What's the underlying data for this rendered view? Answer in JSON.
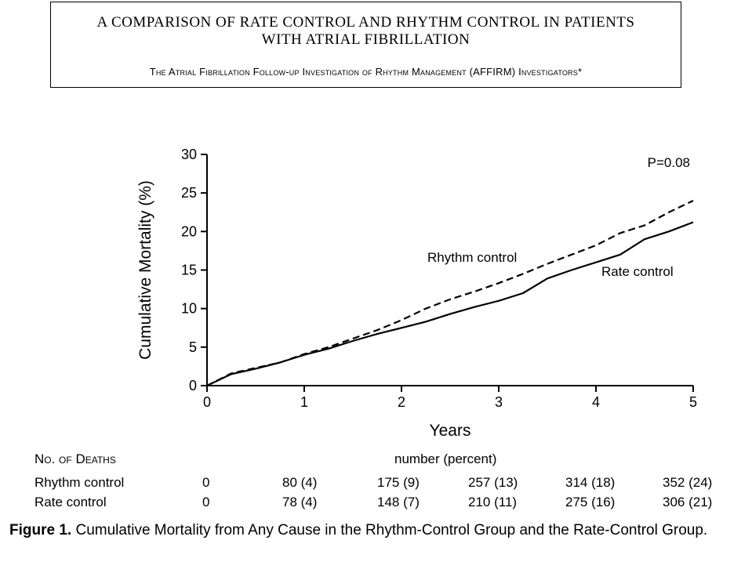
{
  "header": {
    "title": "A COMPARISON OF RATE CONTROL AND RHYTHM CONTROL IN PATIENTS\nWITH ATRIAL FIBRILLATION",
    "authors": "The Atrial Fibrillation Follow-up Investigation of Rhythm Management (AFFIRM) Investigators*"
  },
  "chart_data": {
    "type": "line",
    "xlabel": "Years",
    "ylabel": "Cumulative Mortality (%)",
    "xlim": [
      0,
      5
    ],
    "ylim": [
      0,
      30
    ],
    "xticks": [
      "0",
      "1",
      "2",
      "3",
      "4",
      "5"
    ],
    "yticks": [
      "0",
      "5",
      "10",
      "15",
      "20",
      "25",
      "30"
    ],
    "grid": false,
    "annotation": "P=0.08",
    "series": [
      {
        "name": "Rhythm control",
        "style": "dashed",
        "x": [
          0,
          0.25,
          0.5,
          0.75,
          1.0,
          1.25,
          1.5,
          1.75,
          2.0,
          2.25,
          2.5,
          2.75,
          3.0,
          3.25,
          3.5,
          3.75,
          4.0,
          4.25,
          4.5,
          4.75,
          5.0
        ],
        "y": [
          0,
          1.6,
          2.3,
          3.0,
          4.1,
          5.0,
          6.1,
          7.2,
          8.5,
          10.0,
          11.2,
          12.2,
          13.3,
          14.5,
          15.8,
          17.0,
          18.2,
          19.8,
          20.8,
          22.5,
          24.0
        ]
      },
      {
        "name": "Rate control",
        "style": "solid",
        "x": [
          0,
          0.25,
          0.5,
          0.75,
          1.0,
          1.25,
          1.5,
          1.75,
          2.0,
          2.25,
          2.5,
          2.75,
          3.0,
          3.25,
          3.5,
          3.75,
          4.0,
          4.25,
          4.5,
          4.75,
          5.0
        ],
        "y": [
          0,
          1.5,
          2.2,
          3.0,
          4.0,
          4.8,
          5.8,
          6.7,
          7.5,
          8.3,
          9.3,
          10.2,
          11.0,
          12.0,
          13.9,
          15.0,
          16.0,
          17.0,
          19.0,
          20.0,
          21.2
        ]
      }
    ]
  },
  "deaths_table": {
    "header_label": "No. of Deaths",
    "units_label": "number (percent)",
    "rows": [
      {
        "label": "Rhythm control",
        "values": [
          "0",
          "80 (4)",
          "175 (9)",
          "257 (13)",
          "314 (18)",
          "352 (24)"
        ]
      },
      {
        "label": "Rate control",
        "values": [
          "0",
          "78 (4)",
          "148 (7)",
          "210 (11)",
          "275 (16)",
          "306 (21)"
        ]
      }
    ]
  },
  "caption": {
    "prefix": "Figure 1.",
    "text": "Cumulative Mortality from Any Cause in the Rhythm-Control Group and the Rate-Control Group."
  }
}
